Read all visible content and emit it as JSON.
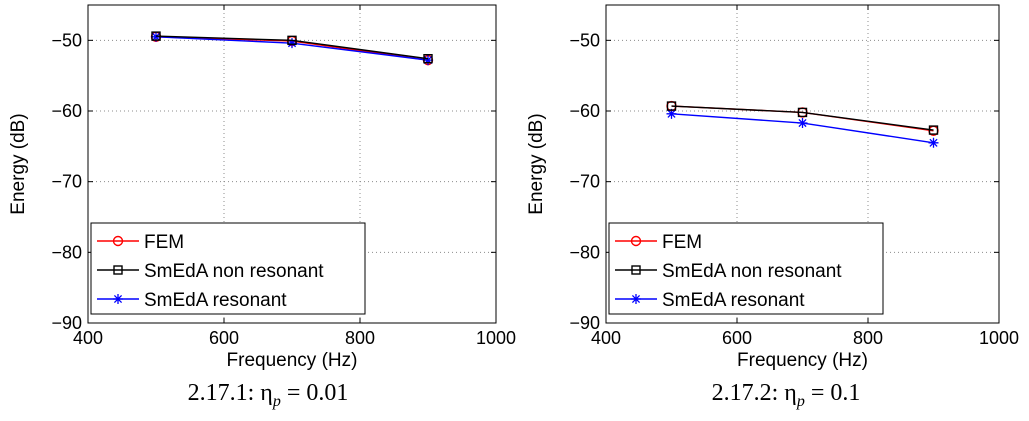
{
  "chart_data": [
    {
      "type": "line",
      "caption": "2.17.1: η",
      "caption_sub": "p",
      "caption_tail": " = 0.01",
      "xlabel": "Frequency (Hz)",
      "ylabel": "Energy (dB)",
      "xlim": [
        400,
        1000
      ],
      "ylim": [
        -90,
        -45
      ],
      "xticks": [
        "400",
        "600",
        "800",
        "1000"
      ],
      "yticks": [
        "−50",
        "−60",
        "−70",
        "−80",
        "−90"
      ],
      "grid": true,
      "legend_position": "bottom-left",
      "x": [
        500,
        700,
        900
      ],
      "series": [
        {
          "name": "FEM",
          "color": "#ff0000",
          "marker": "circle",
          "values": [
            -49.5,
            -50.1,
            -52.8
          ]
        },
        {
          "name": "SmEdA non resonant",
          "color": "#000000",
          "marker": "square",
          "values": [
            -49.4,
            -50.0,
            -52.6
          ]
        },
        {
          "name": "SmEdA resonant",
          "color": "#0000ff",
          "marker": "star",
          "values": [
            -49.5,
            -50.4,
            -52.8
          ]
        }
      ]
    },
    {
      "type": "line",
      "caption": "2.17.2: η",
      "caption_sub": "p",
      "caption_tail": " = 0.1",
      "xlabel": "Frequency (Hz)",
      "ylabel": "Energy (dB)",
      "xlim": [
        400,
        1000
      ],
      "ylim": [
        -90,
        -45
      ],
      "xticks": [
        "400",
        "600",
        "800",
        "1000"
      ],
      "yticks": [
        "−50",
        "−60",
        "−70",
        "−80",
        "−90"
      ],
      "grid": true,
      "legend_position": "bottom-left",
      "x": [
        500,
        700,
        900
      ],
      "series": [
        {
          "name": "FEM",
          "color": "#ff0000",
          "marker": "circle",
          "values": [
            -59.3,
            -60.2,
            -62.8
          ]
        },
        {
          "name": "SmEdA non resonant",
          "color": "#000000",
          "marker": "square",
          "values": [
            -59.3,
            -60.2,
            -62.7
          ]
        },
        {
          "name": "SmEdA resonant",
          "color": "#0000ff",
          "marker": "star",
          "values": [
            -60.4,
            -61.7,
            -64.5
          ]
        }
      ]
    }
  ]
}
